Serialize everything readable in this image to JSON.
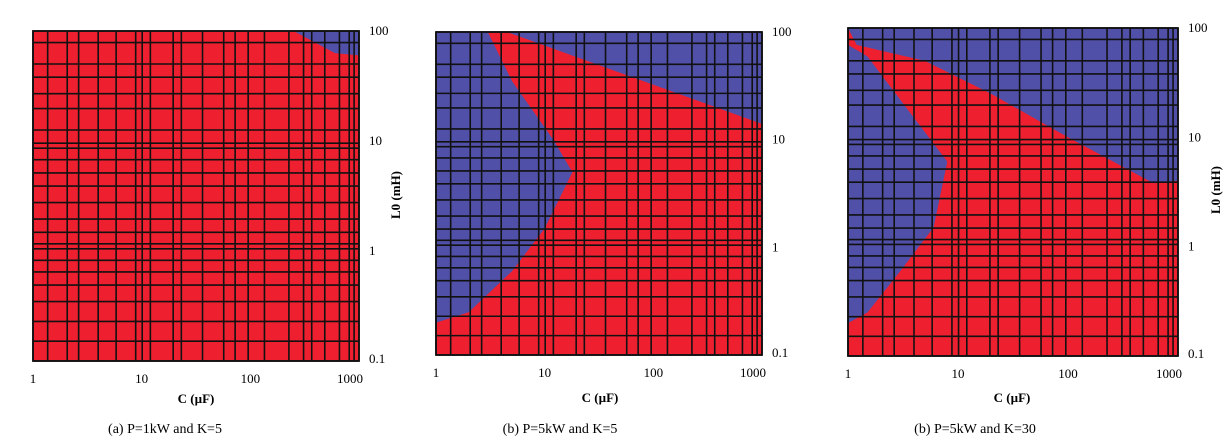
{
  "chart_data": [
    {
      "type": "heatmap",
      "caption": "(a) P=1kW and K=5",
      "xlabel": "C (µF)",
      "ylabel": "L0 (mH)",
      "x_scale": "log",
      "y_scale": "log",
      "xlim": [
        1,
        1000
      ],
      "ylim": [
        0.1,
        100
      ],
      "x_ticks": [
        "1",
        "10",
        "100",
        "1000"
      ],
      "y_ticks": [
        "0.1",
        "1",
        "10",
        "100"
      ],
      "grid": true,
      "colors": {
        "region_a": "#ee2030",
        "region_b": "#5050a8"
      },
      "region_b_boundary": [
        [
          250,
          100
        ],
        [
          600,
          63
        ],
        [
          1000,
          60
        ]
      ],
      "region_b_side": "upper-right"
    },
    {
      "type": "heatmap",
      "caption": "(b) P=5kW and K=5",
      "xlabel": "C (µF)",
      "ylabel": "",
      "x_scale": "log",
      "y_scale": "log",
      "xlim": [
        1,
        1000
      ],
      "ylim": [
        0.1,
        100
      ],
      "x_ticks": [
        "1",
        "10",
        "100",
        "1000"
      ],
      "y_ticks": [
        "0.1",
        "1",
        "10",
        "100"
      ],
      "grid": true,
      "colors": {
        "region_a": "#ee2030",
        "region_b": "#5050a8"
      },
      "region_b_left": [
        [
          1,
          100
        ],
        [
          3,
          100
        ],
        [
          5,
          35
        ],
        [
          12,
          10
        ],
        [
          18,
          5
        ],
        [
          10,
          1.5
        ],
        [
          5,
          0.6
        ],
        [
          2,
          0.25
        ],
        [
          1,
          0.2
        ]
      ],
      "region_b_upper_right": [
        [
          4.5,
          100
        ],
        [
          1000,
          100
        ],
        [
          1000,
          14
        ]
      ]
    },
    {
      "type": "heatmap",
      "caption": "(b) P=5kW and K=30",
      "xlabel": "C (µF)",
      "ylabel": "L0 (mH)",
      "x_scale": "log",
      "y_scale": "log",
      "xlim": [
        1,
        1000
      ],
      "ylim": [
        0.1,
        100
      ],
      "x_ticks": [
        "1",
        "10",
        "100",
        "1000"
      ],
      "y_ticks": [
        "0.1",
        "1",
        "10",
        "100"
      ],
      "grid": true,
      "colors": {
        "region_a": "#ee2030",
        "region_b": "#5050a8"
      },
      "region_b_left": [
        [
          1,
          100
        ],
        [
          1,
          70
        ],
        [
          1.5,
          55
        ],
        [
          4,
          15
        ],
        [
          8,
          6
        ],
        [
          6,
          1.5
        ],
        [
          3,
          0.6
        ],
        [
          1.5,
          0.25
        ],
        [
          1,
          0.2
        ]
      ],
      "region_b_upper_right": [
        [
          1,
          100
        ],
        [
          1000,
          100
        ],
        [
          1000,
          4
        ],
        [
          600,
          3.8
        ],
        [
          100,
          10
        ],
        [
          20,
          25
        ],
        [
          5,
          50
        ],
        [
          1.2,
          70
        ]
      ]
    }
  ]
}
